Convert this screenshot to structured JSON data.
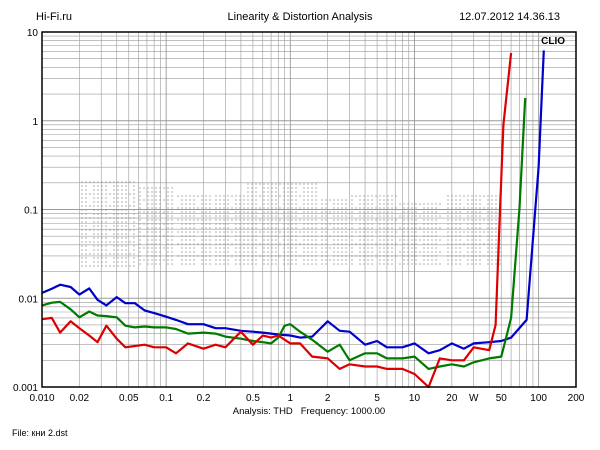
{
  "header": {
    "site": "Hi-Fi.ru",
    "title": "Linearity & Distortion Analysis",
    "timestamp": "12.07.2012 14.36.13"
  },
  "brand": "CLIO",
  "footer": {
    "file": "File: кни 2.dst"
  },
  "colors": {
    "blue": "#0000cc",
    "green": "#007a00",
    "red": "#dd0000",
    "grid": "#9a9a9a",
    "frame": "#000000"
  },
  "chart_data": {
    "type": "line",
    "title": "Linearity & Distortion Analysis",
    "xlabel": "Analysis: THD   Frequency: 1000.00",
    "ylabel": "",
    "x_scale": "log",
    "y_scale": "log",
    "xlim": [
      0.01,
      200
    ],
    "ylim": [
      0.001,
      10
    ],
    "x_ticks": [
      {
        "v": 0.01,
        "label": "0.010"
      },
      {
        "v": 0.02,
        "label": "0.02"
      },
      {
        "v": 0.05,
        "label": "0.05"
      },
      {
        "v": 0.1,
        "label": "0.1"
      },
      {
        "v": 0.2,
        "label": "0.2"
      },
      {
        "v": 0.5,
        "label": "0.5"
      },
      {
        "v": 1,
        "label": "1"
      },
      {
        "v": 2,
        "label": "2"
      },
      {
        "v": 5,
        "label": "5"
      },
      {
        "v": 10,
        "label": "10"
      },
      {
        "v": 20,
        "label": "20"
      },
      {
        "v": 30,
        "label": "W"
      },
      {
        "v": 50,
        "label": "50"
      },
      {
        "v": 100,
        "label": "100"
      },
      {
        "v": 200,
        "label": "200"
      }
    ],
    "y_ticks": [
      {
        "v": 10,
        "label": "10"
      },
      {
        "v": 1,
        "label": "1"
      },
      {
        "v": 0.1,
        "label": "0.1"
      },
      {
        "v": 0.01,
        "label": "0.01"
      },
      {
        "v": 0.001,
        "label": "0.001"
      }
    ],
    "grid": true,
    "legend": "none",
    "series": [
      {
        "color": "#0000cc",
        "points": [
          [
            0.01,
            0.0115
          ],
          [
            0.012,
            0.0128
          ],
          [
            0.014,
            0.0142
          ],
          [
            0.017,
            0.0134
          ],
          [
            0.02,
            0.011
          ],
          [
            0.024,
            0.0129
          ],
          [
            0.028,
            0.0096
          ],
          [
            0.033,
            0.0083
          ],
          [
            0.04,
            0.0103
          ],
          [
            0.047,
            0.0088
          ],
          [
            0.056,
            0.0088
          ],
          [
            0.067,
            0.0073
          ],
          [
            0.08,
            0.0068
          ],
          [
            0.1,
            0.0062
          ],
          [
            0.12,
            0.0057
          ],
          [
            0.15,
            0.0051
          ],
          [
            0.2,
            0.0051
          ],
          [
            0.25,
            0.0046
          ],
          [
            0.3,
            0.0046
          ],
          [
            0.4,
            0.0043
          ],
          [
            0.5,
            0.0042
          ],
          [
            0.6,
            0.0041
          ],
          [
            0.7,
            0.004
          ],
          [
            0.8,
            0.0039
          ],
          [
            1.0,
            0.0038
          ],
          [
            1.2,
            0.0036
          ],
          [
            1.5,
            0.0037
          ],
          [
            2.0,
            0.0055
          ],
          [
            2.5,
            0.0043
          ],
          [
            3.0,
            0.0042
          ],
          [
            4.0,
            0.003
          ],
          [
            5.0,
            0.0033
          ],
          [
            6.0,
            0.0028
          ],
          [
            8.0,
            0.0028
          ],
          [
            10,
            0.0031
          ],
          [
            13,
            0.0024
          ],
          [
            16,
            0.0026
          ],
          [
            20,
            0.0031
          ],
          [
            25,
            0.0027
          ],
          [
            30,
            0.0031
          ],
          [
            40,
            0.0032
          ],
          [
            50,
            0.0033
          ],
          [
            60,
            0.0036
          ],
          [
            80,
            0.0057
          ],
          [
            100,
            0.3
          ],
          [
            110,
            6.2
          ]
        ]
      },
      {
        "color": "#007a00",
        "points": [
          [
            0.01,
            0.0083
          ],
          [
            0.012,
            0.0089
          ],
          [
            0.014,
            0.0091
          ],
          [
            0.017,
            0.0075
          ],
          [
            0.02,
            0.0061
          ],
          [
            0.024,
            0.0071
          ],
          [
            0.028,
            0.0064
          ],
          [
            0.033,
            0.0063
          ],
          [
            0.04,
            0.0061
          ],
          [
            0.047,
            0.0049
          ],
          [
            0.056,
            0.0047
          ],
          [
            0.067,
            0.0048
          ],
          [
            0.08,
            0.0047
          ],
          [
            0.1,
            0.0047
          ],
          [
            0.12,
            0.0045
          ],
          [
            0.15,
            0.004
          ],
          [
            0.2,
            0.0041
          ],
          [
            0.25,
            0.004
          ],
          [
            0.3,
            0.0037
          ],
          [
            0.4,
            0.0035
          ],
          [
            0.5,
            0.0033
          ],
          [
            0.6,
            0.0032
          ],
          [
            0.7,
            0.0031
          ],
          [
            0.8,
            0.0036
          ],
          [
            0.9,
            0.0049
          ],
          [
            1.0,
            0.0051
          ],
          [
            1.2,
            0.0042
          ],
          [
            1.5,
            0.0034
          ],
          [
            2.0,
            0.0025
          ],
          [
            2.5,
            0.003
          ],
          [
            3.0,
            0.002
          ],
          [
            4.0,
            0.0024
          ],
          [
            5.0,
            0.0024
          ],
          [
            6.0,
            0.0021
          ],
          [
            8.0,
            0.0021
          ],
          [
            10,
            0.0022
          ],
          [
            13,
            0.0016
          ],
          [
            16,
            0.0017
          ],
          [
            20,
            0.0018
          ],
          [
            25,
            0.0017
          ],
          [
            30,
            0.0019
          ],
          [
            40,
            0.0021
          ],
          [
            50,
            0.0022
          ],
          [
            60,
            0.006
          ],
          [
            70,
            0.1
          ],
          [
            78,
            1.8
          ]
        ]
      },
      {
        "color": "#dd0000",
        "points": [
          [
            0.01,
            0.0058
          ],
          [
            0.012,
            0.006
          ],
          [
            0.014,
            0.0041
          ],
          [
            0.017,
            0.0055
          ],
          [
            0.02,
            0.0046
          ],
          [
            0.024,
            0.0038
          ],
          [
            0.028,
            0.0032
          ],
          [
            0.033,
            0.0049
          ],
          [
            0.04,
            0.0035
          ],
          [
            0.047,
            0.0028
          ],
          [
            0.056,
            0.0029
          ],
          [
            0.067,
            0.003
          ],
          [
            0.08,
            0.0028
          ],
          [
            0.1,
            0.0028
          ],
          [
            0.12,
            0.0024
          ],
          [
            0.15,
            0.0031
          ],
          [
            0.2,
            0.0027
          ],
          [
            0.25,
            0.003
          ],
          [
            0.3,
            0.0028
          ],
          [
            0.4,
            0.0042
          ],
          [
            0.5,
            0.003
          ],
          [
            0.6,
            0.0038
          ],
          [
            0.7,
            0.0036
          ],
          [
            0.8,
            0.0038
          ],
          [
            1.0,
            0.0031
          ],
          [
            1.2,
            0.0031
          ],
          [
            1.5,
            0.0022
          ],
          [
            2.0,
            0.0021
          ],
          [
            2.5,
            0.0016
          ],
          [
            3.0,
            0.0018
          ],
          [
            4.0,
            0.0017
          ],
          [
            5.0,
            0.0017
          ],
          [
            6.0,
            0.0016
          ],
          [
            8.0,
            0.0016
          ],
          [
            10,
            0.0014
          ],
          [
            13,
            0.001
          ],
          [
            16,
            0.0021
          ],
          [
            20,
            0.002
          ],
          [
            25,
            0.002
          ],
          [
            30,
            0.0028
          ],
          [
            40,
            0.0026
          ],
          [
            45,
            0.005
          ],
          [
            48,
            0.05
          ],
          [
            52,
            0.9
          ],
          [
            60,
            5.8
          ]
        ]
      }
    ]
  }
}
